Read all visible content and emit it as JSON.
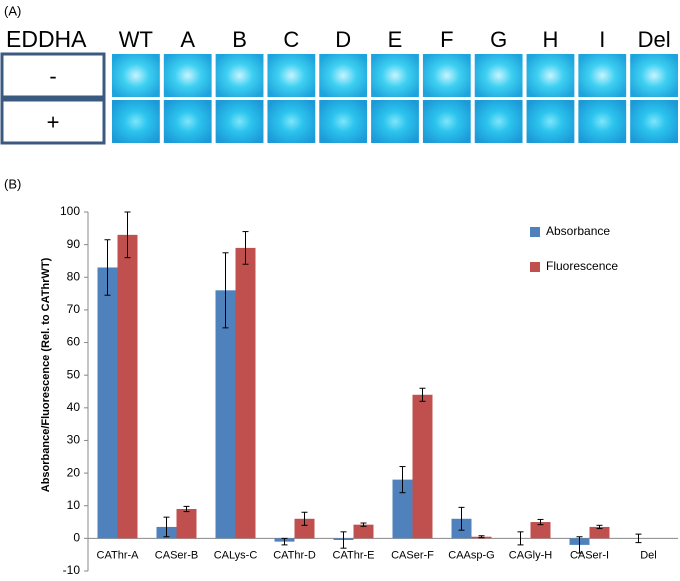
{
  "panel_a": {
    "label": "(A)",
    "row_header": "EDDHA",
    "columns": [
      "WT",
      "A",
      "B",
      "C",
      "D",
      "E",
      "F",
      "G",
      "H",
      "I",
      "Del"
    ],
    "rows": [
      "-",
      "+"
    ]
  },
  "chart_data": {
    "type": "bar",
    "panel_label": "(B)",
    "y_label": "Absorbance/Fluorescence (Rel. to CAThrWT)",
    "categories": [
      "CAThr-A",
      "CASer-B",
      "CALys-C",
      "CAThr-D",
      "CAThr-E",
      "CASer-F",
      "CAAsp-G",
      "CAGly-H",
      "CASer-I",
      "Del"
    ],
    "series": [
      {
        "name": "Absorbance",
        "color": "#4f81bd",
        "values": [
          83,
          3.5,
          76,
          -1,
          -0.5,
          18,
          6,
          0,
          -2,
          0
        ],
        "errors": [
          8.5,
          3,
          11.5,
          1,
          2.5,
          4,
          3.5,
          2,
          2.5,
          1.3
        ]
      },
      {
        "name": "Fluorescence",
        "color": "#c0504d",
        "values": [
          93,
          9,
          89,
          6,
          4.2,
          44,
          0.5,
          5,
          3.5,
          null
        ],
        "errors": [
          7,
          0.8,
          5,
          2,
          0.5,
          2,
          0.3,
          0.8,
          0.5,
          null
        ]
      }
    ],
    "ylim": [
      -10,
      100
    ],
    "yticks": [
      -10,
      0,
      10,
      20,
      30,
      40,
      50,
      60,
      70,
      80,
      90,
      100
    ],
    "grid": false
  }
}
